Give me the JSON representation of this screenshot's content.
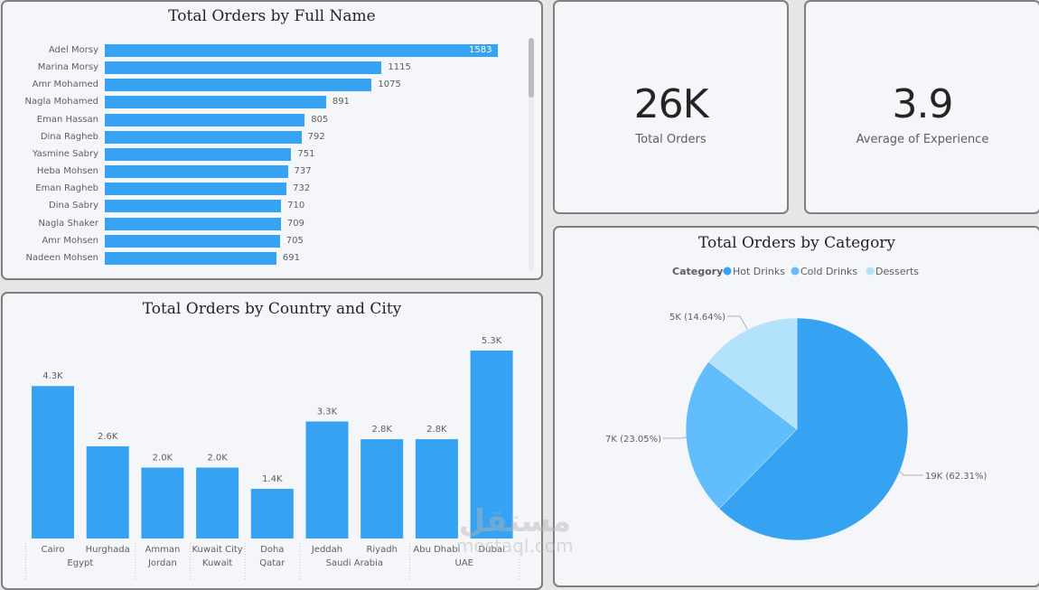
{
  "kpis": [
    {
      "value": "26K",
      "label": "Total Orders"
    },
    {
      "value": "3.9",
      "label": "Average of Experience"
    }
  ],
  "watermark": {
    "arabic": "مستقل",
    "latin": "mostaql.com"
  },
  "colors": {
    "hot_drinks": "#36a2f2",
    "cold_drinks": "#62bdfc",
    "desserts": "#b3e2fb",
    "bar": "#36a2f2"
  },
  "chart_data": [
    {
      "type": "bar",
      "orientation": "horizontal",
      "title": "Total Orders by Full Name",
      "categories": [
        "Adel Morsy",
        "Marina Morsy",
        "Amr Mohamed",
        "Nagla Mohamed",
        "Eman Hassan",
        "Dina Ragheb",
        "Yasmine Sabry",
        "Heba Mohsen",
        "Eman Ragheb",
        "Dina Sabry",
        "Nagla Shaker",
        "Amr Mohsen",
        "Nadeen Mohsen"
      ],
      "values": [
        1583,
        1115,
        1075,
        891,
        805,
        792,
        751,
        737,
        732,
        710,
        709,
        705,
        691
      ],
      "data_labels": [
        "1583",
        "1115",
        "1075",
        "891",
        "805",
        "792",
        "751",
        "737",
        "732",
        "710",
        "709",
        "705",
        "691"
      ],
      "xlabel": "",
      "ylabel": "",
      "xlim": [
        0,
        1583
      ],
      "grid": false,
      "scrollable": true
    },
    {
      "type": "bar",
      "title": "Total Orders by Country and City",
      "categories": [
        "Cairo",
        "Hurghada",
        "Amman",
        "Kuwait City",
        "Doha",
        "Jeddah",
        "Riyadh",
        "Abu Dhabi",
        "Dubai"
      ],
      "groups": [
        {
          "name": "Egypt",
          "cities": [
            "Cairo",
            "Hurghada"
          ]
        },
        {
          "name": "Jordan",
          "cities": [
            "Amman"
          ]
        },
        {
          "name": "Kuwait",
          "cities": [
            "Kuwait City"
          ]
        },
        {
          "name": "Qatar",
          "cities": [
            "Doha"
          ]
        },
        {
          "name": "Saudi Arabia",
          "cities": [
            "Jeddah",
            "Riyadh"
          ]
        },
        {
          "name": "UAE",
          "cities": [
            "Abu Dhabi",
            "Dubai"
          ]
        }
      ],
      "values": [
        4300,
        2600,
        2000,
        2000,
        1400,
        3300,
        2800,
        2800,
        5300
      ],
      "data_labels": [
        "4.3K",
        "2.6K",
        "2.0K",
        "2.0K",
        "1.4K",
        "3.3K",
        "2.8K",
        "2.8K",
        "5.3K"
      ],
      "xlabel": "",
      "ylabel": "",
      "ylim": [
        0,
        5300
      ],
      "grid": false
    },
    {
      "type": "pie",
      "title": "Total Orders by Category",
      "legend_title": "Category",
      "legend_position": "top",
      "categories": [
        "Hot  Drinks",
        "Cold  Drinks",
        "Desserts"
      ],
      "values": [
        19000,
        7000,
        5000
      ],
      "percentages": [
        62.31,
        23.05,
        14.64
      ],
      "data_labels": [
        "19K (62.31%)",
        "7K (23.05%)",
        "5K (14.64%)"
      ]
    }
  ]
}
